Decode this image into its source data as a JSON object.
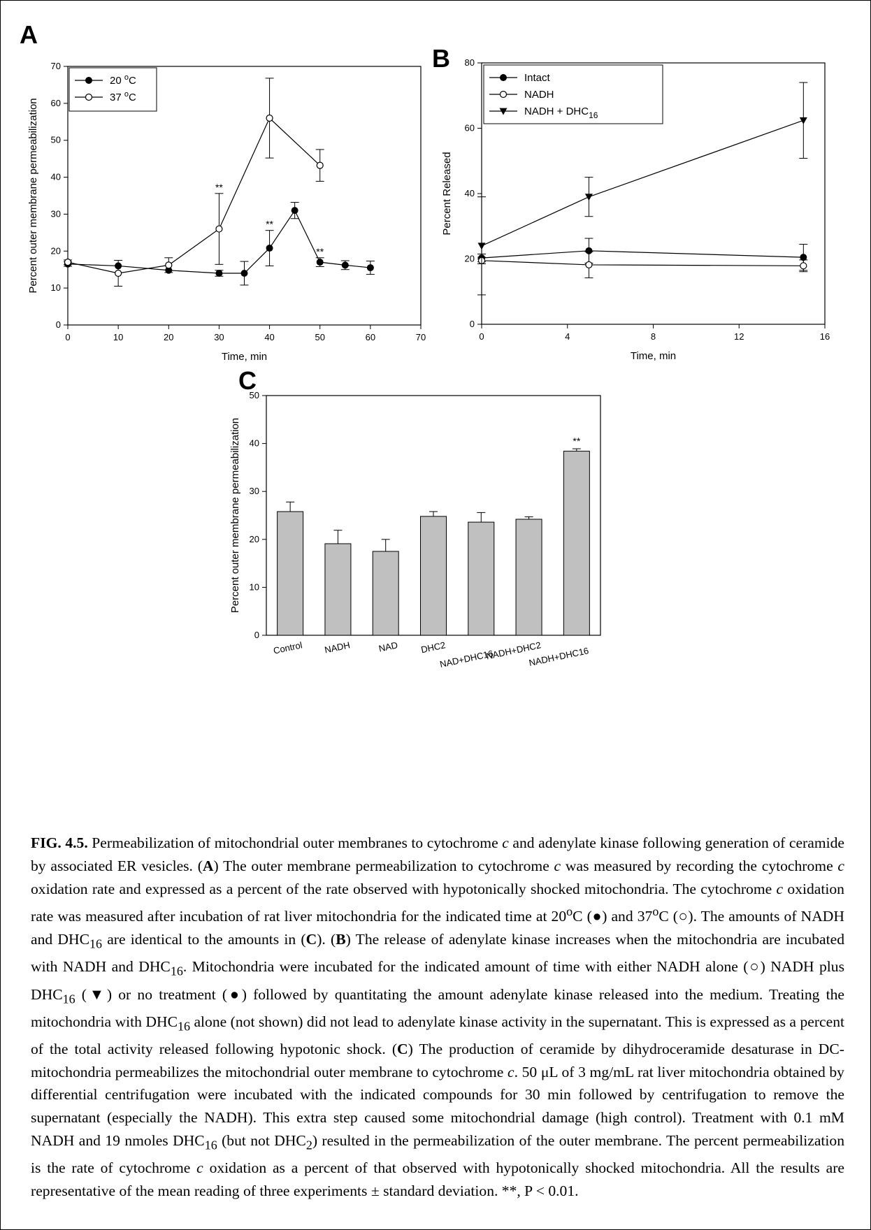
{
  "figure": {
    "panels": {
      "A": {
        "label": "A"
      },
      "B": {
        "label": "B"
      },
      "C": {
        "label": "C"
      }
    }
  },
  "chart_data": [
    {
      "panel": "A",
      "type": "line",
      "xlabel": "Time, min",
      "ylabel": "Percent outer membrane permeabilization",
      "xlim": [
        0,
        70
      ],
      "ylim": [
        0,
        70
      ],
      "xticks": [
        "0",
        "10",
        "20",
        "30",
        "40",
        "50",
        "60",
        "70"
      ],
      "yticks": [
        "0",
        "10",
        "20",
        "30",
        "40",
        "50",
        "60",
        "70"
      ],
      "legend_position": "top-left",
      "grid": false,
      "series": [
        {
          "name": "20 °C",
          "marker": "filled-circle",
          "x": [
            0,
            10,
            20,
            30,
            35,
            40,
            45,
            50,
            55,
            60
          ],
          "y": [
            16.5,
            16,
            14.8,
            14,
            14,
            20.8,
            31,
            17,
            16.2,
            15.5
          ],
          "err": [
            0.6,
            0,
            0,
            0.8,
            3.2,
            4.8,
            2.2,
            1.2,
            1.2,
            1.8
          ]
        },
        {
          "name": "37 °C",
          "marker": "open-circle",
          "x": [
            0,
            10,
            20,
            30,
            40,
            50
          ],
          "y": [
            17,
            14,
            16.2,
            26,
            56,
            43.2
          ],
          "err": [
            0.6,
            3.5,
            2,
            9.6,
            10.8,
            4.3
          ]
        }
      ],
      "annotations": [
        {
          "text": "**",
          "x": 30,
          "y": 35.6
        },
        {
          "text": "**",
          "x": 40,
          "y": 25.6
        },
        {
          "text": "**",
          "x": 50,
          "y": 18.2
        }
      ]
    },
    {
      "panel": "B",
      "type": "line",
      "xlabel": "Time, min",
      "ylabel": "Percent Released",
      "xlim": [
        0,
        16
      ],
      "ylim": [
        0,
        80
      ],
      "xticks": [
        "0",
        "4",
        "8",
        "12",
        "16"
      ],
      "yticks": [
        "0",
        "20",
        "40",
        "60",
        "80"
      ],
      "legend_position": "top-left",
      "grid": false,
      "series": [
        {
          "name": "Intact",
          "marker": "filled-circle",
          "x": [
            0,
            5,
            15
          ],
          "y": [
            20.3,
            22.5,
            20.5
          ],
          "err": [
            1.2,
            3.8,
            4
          ]
        },
        {
          "name": "NADH",
          "marker": "open-circle",
          "x": [
            0,
            5,
            15
          ],
          "y": [
            19.5,
            18.2,
            17.9
          ],
          "err": [
            1,
            4,
            1.8
          ]
        },
        {
          "name": "NADH + DHC16",
          "marker": "filled-triangle-down",
          "x": [
            0,
            5,
            15
          ],
          "y": [
            24,
            39,
            62.4
          ],
          "err": [
            15,
            6,
            11.6
          ]
        }
      ]
    },
    {
      "panel": "C",
      "type": "bar",
      "ylabel": "Percent outer membrane permeabilization",
      "ylim": [
        0,
        50
      ],
      "yticks": [
        "0",
        "10",
        "20",
        "30",
        "40",
        "50"
      ],
      "grid": false,
      "categories": [
        "Control",
        "NADH",
        "NAD",
        "DHC2",
        "NAD+DHC16",
        "NADH+DHC2",
        "NADH+DHC16"
      ],
      "values": [
        25.8,
        19.1,
        17.5,
        24.8,
        23.6,
        24.2,
        38.4
      ],
      "err": [
        2,
        2.8,
        2.5,
        1,
        2,
        0.5,
        0.5
      ],
      "bar_color": "#c0c0c0",
      "annotations": [
        {
          "text": "**",
          "category": "NADH+DHC16"
        }
      ]
    }
  ],
  "caption": {
    "fig_label": "FIG. 4.5.",
    "c": "c",
    "A": "A",
    "B": "B",
    "C": "C",
    "oc": "o",
    "sub16": "16",
    "sub2": "2",
    "s1": " Permeabilization of mitochondrial outer membranes to cytochrome ",
    "s2": " and adenylate kinase following generation of ceramide by associated ER vesicles.  (",
    "s3": ") The outer membrane permeabilization to cytochrome ",
    "s4": " was measured by recording the cytochrome ",
    "s5": " oxidation rate and expressed as a percent of the rate observed with hypotonically shocked mitochondria. The cytochrome ",
    "s6": " oxidation rate was measured after incubation of rat liver mitochondria for the indicated time at 20",
    "s7": "C (●) and 37",
    "s8": "C (○). The amounts of NADH and DHC",
    "s9": " are identical to the amounts in (",
    "s10": "). (",
    "s11": ") The release of adenylate kinase increases when the mitochondria are incubated with NADH and DHC",
    "s12": ". Mitochondria were incubated for the indicated amount of time with either NADH alone (○) NADH plus DHC",
    "s13": " (▼) or no treatment (●) followed by quantitating the amount adenylate kinase released into the medium.  Treating the mitochondria with DHC",
    "s14": " alone (not shown) did not lead to adenylate kinase activity in the supernatant. This is expressed as a percent of the total activity released following hypotonic shock. (",
    "s15": ") The production of ceramide by dihydroceramide desaturase in DC-mitochondria permeabilizes the mitochondrial outer membrane to cytochrome ",
    "s16": ". 50 μL of 3 mg/mL rat liver mitochondria obtained by differential centrifugation were incubated with the indicated compounds for 30 min followed by centrifugation to remove the supernatant (especially the NADH). This extra step caused some mitochondrial damage (high control).  Treatment with 0.1 mM NADH and 19 nmoles DHC",
    "s17": " (but not DHC",
    "s18": ") resulted in the permeabilization of the outer membrane. The percent permeabilization is the rate of cytochrome ",
    "s19": " oxidation as a percent of that observed with hypotonically shocked mitochondria.  All the results are representative of the mean reading of three experiments ± standard deviation. **, P < 0.01."
  }
}
